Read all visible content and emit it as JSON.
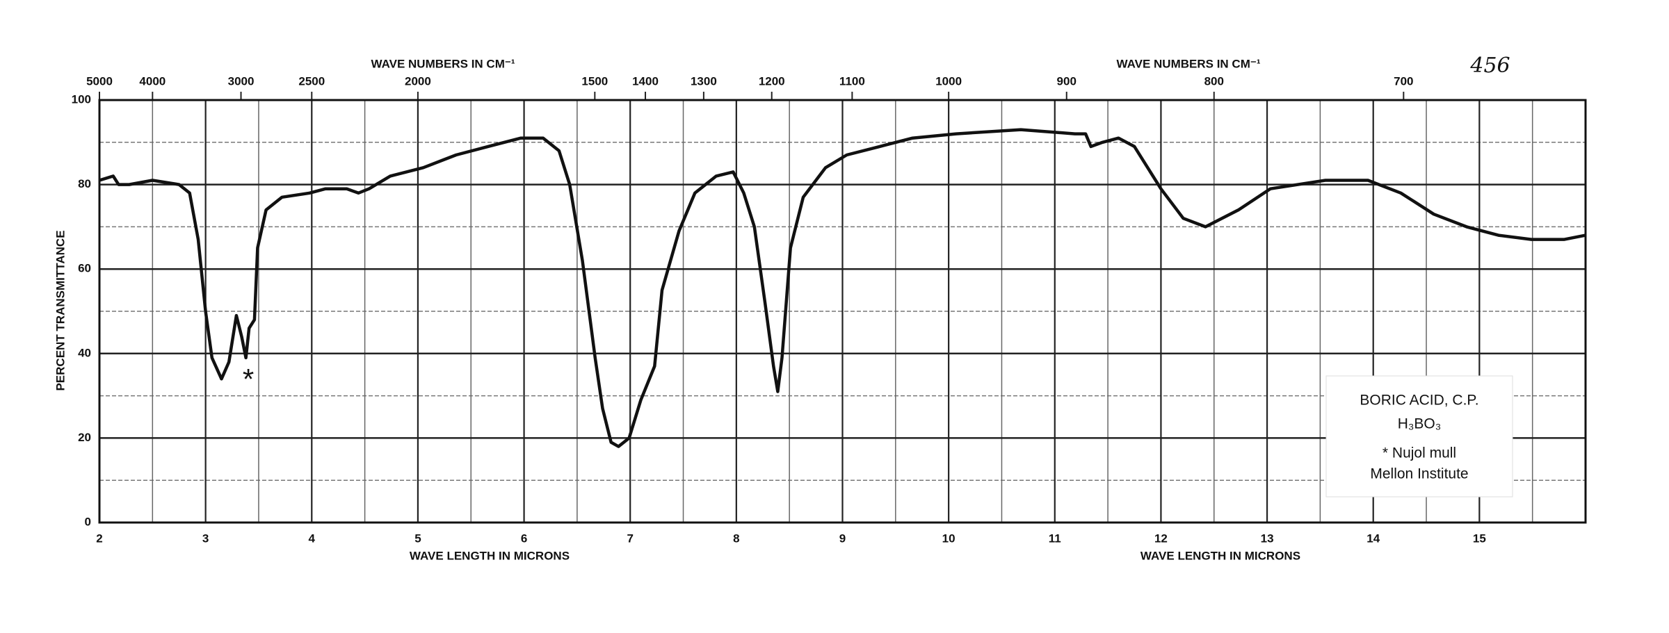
{
  "chart_data": {
    "type": "line",
    "top_axis_label": "WAVE NUMBERS IN CM⁻¹",
    "top_axis_label_right": "WAVE NUMBERS IN CM⁻¹",
    "x_label": "WAVE LENGTH IN MICRONS",
    "x_label_right": "WAVE LENGTH IN MICRONS",
    "y_label": "PERCENT TRANSMITTANCE",
    "page_number": "456",
    "annotations": [
      "*"
    ],
    "info_box": [
      "BORIC ACID, C.P.",
      "H₃BO₃",
      "* Nujol mull",
      "Mellon Institute"
    ],
    "color": "#111111",
    "x": [
      2.0,
      2.13,
      2.18,
      2.28,
      2.5,
      2.75,
      2.85,
      2.93,
      3.0,
      3.06,
      3.15,
      3.22,
      3.29,
      3.34,
      3.38,
      3.41,
      3.46,
      3.49,
      3.57,
      3.72,
      3.98,
      4.13,
      4.33,
      4.44,
      4.54,
      4.74,
      5.05,
      5.36,
      5.66,
      5.97,
      6.18,
      6.33,
      6.43,
      6.55,
      6.67,
      6.74,
      6.82,
      6.89,
      6.99,
      7.1,
      7.23,
      7.3,
      7.46,
      7.61,
      7.81,
      7.97,
      8.07,
      8.17,
      8.27,
      8.35,
      8.39,
      8.43,
      8.51,
      8.63,
      8.84,
      9.04,
      9.35,
      9.66,
      10.07,
      10.68,
      11.19,
      11.29,
      11.34,
      11.45,
      11.6,
      11.75,
      12.0,
      12.21,
      12.42,
      12.73,
      13.03,
      13.55,
      13.95,
      14.26,
      14.57,
      14.88,
      15.18,
      15.49,
      15.8,
      16.0
    ],
    "values": [
      81,
      82,
      80,
      80,
      81,
      80,
      78,
      67,
      50,
      39,
      34,
      38,
      49,
      44,
      39,
      46,
      48,
      65,
      74,
      77,
      78,
      79,
      79,
      78,
      79,
      82,
      84,
      87,
      89,
      91,
      91,
      88,
      80,
      62,
      39,
      27,
      19,
      18,
      20,
      29,
      37,
      55,
      69,
      78,
      82,
      83,
      78,
      70,
      52,
      37,
      31,
      39,
      65,
      77,
      84,
      87,
      89,
      91,
      92,
      93,
      92,
      92,
      89,
      90,
      91,
      89,
      79,
      72,
      70,
      74,
      79,
      81,
      81,
      78,
      73,
      70,
      68,
      67,
      67,
      68
    ],
    "xlim": [
      2,
      16
    ],
    "ylim": [
      0,
      100
    ],
    "xticks": [
      2,
      3,
      4,
      5,
      6,
      7,
      8,
      9,
      10,
      11,
      12,
      13,
      14,
      15
    ],
    "x_minor_ticks": [
      2.5,
      3.5,
      4.5,
      5.5,
      6.5,
      7.5,
      8.5,
      9.5,
      10.5,
      11.5,
      12.5,
      13.5,
      14.5,
      15.5,
      16
    ],
    "x2ticks": [
      5000,
      4000,
      3000,
      2500,
      2000,
      1500,
      1400,
      1300,
      1200,
      1100,
      1000,
      900,
      800,
      700
    ],
    "yticks": [
      0,
      20,
      40,
      60,
      80,
      100
    ],
    "y_minor_ticks": [
      10,
      30,
      50,
      70,
      90
    ],
    "grid": true
  }
}
